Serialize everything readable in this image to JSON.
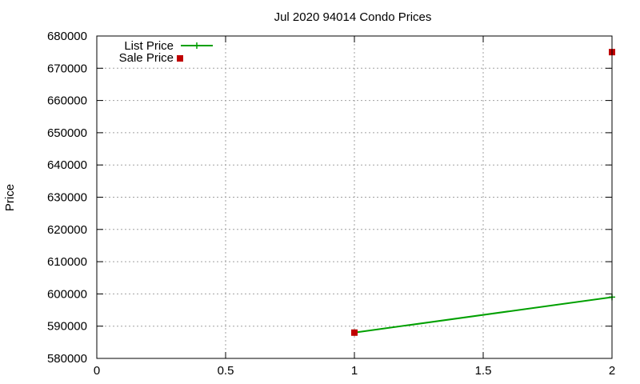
{
  "chart_data": {
    "type": "line",
    "title": "Jul 2020 94014 Condo Prices",
    "xlabel": "",
    "ylabel": "Price",
    "xlim": [
      0,
      2
    ],
    "ylim": [
      580000,
      680000
    ],
    "x_ticks": [
      0,
      0.5,
      1,
      1.5,
      2
    ],
    "x_tick_labels": [
      "0",
      "0.5",
      "1",
      "1.5",
      "2"
    ],
    "y_ticks": [
      580000,
      590000,
      600000,
      610000,
      620000,
      630000,
      640000,
      650000,
      660000,
      670000,
      680000
    ],
    "y_tick_labels": [
      "580000",
      "590000",
      "600000",
      "610000",
      "620000",
      "630000",
      "640000",
      "650000",
      "660000",
      "670000",
      "680000"
    ],
    "grid": true,
    "legend": "top-left",
    "series": [
      {
        "name": "List Price",
        "style": "line",
        "color": "#00a000",
        "points": [
          {
            "x": 1,
            "y": 588000
          },
          {
            "x": 2,
            "y": 599000
          }
        ]
      },
      {
        "name": "Sale Price",
        "style": "points",
        "color": "#c00000",
        "points": [
          {
            "x": 1,
            "y": 588000
          },
          {
            "x": 2,
            "y": 675000
          }
        ]
      }
    ]
  }
}
